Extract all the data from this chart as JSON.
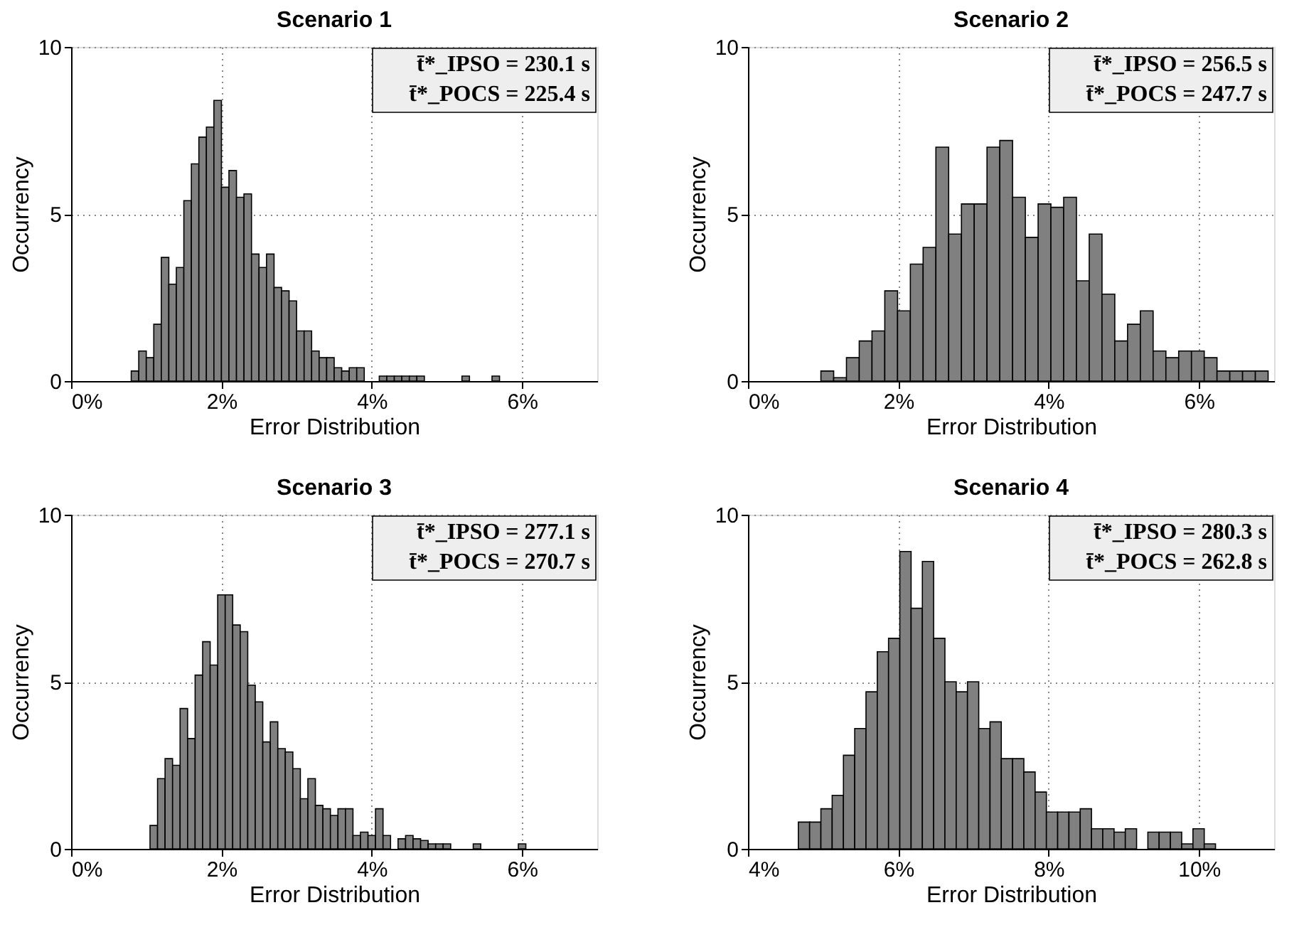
{
  "chart_data": [
    {
      "type": "histogram",
      "title": "Scenario 1",
      "xlabel": "Error Distribution",
      "ylabel": "Occurrency",
      "color": "#808080",
      "bins": [
        0.8,
        0.9,
        1.0,
        1.1,
        1.2,
        1.3,
        1.4,
        1.5,
        1.6,
        1.7,
        1.8,
        1.9,
        2.0,
        2.1,
        2.2,
        2.3,
        2.4,
        2.5,
        2.6,
        2.7,
        2.8,
        2.9,
        3.0,
        3.1,
        3.2,
        3.3,
        3.4,
        3.5,
        3.6,
        3.7,
        3.8,
        3.9,
        4.0,
        4.1,
        4.2,
        4.3,
        4.4,
        4.5,
        4.6,
        4.7,
        4.8,
        4.9,
        5.0,
        5.1,
        5.2,
        5.3,
        5.4,
        5.5,
        5.6,
        5.7
      ],
      "values": [
        0.3,
        0.9,
        0.7,
        1.7,
        3.7,
        2.9,
        3.4,
        5.4,
        6.5,
        7.3,
        7.6,
        8.4,
        5.8,
        6.3,
        5.5,
        5.6,
        3.8,
        3.4,
        3.8,
        2.8,
        2.7,
        2.4,
        1.5,
        1.5,
        0.9,
        0.7,
        0.7,
        0.4,
        0.3,
        0.4,
        0.4,
        0,
        0,
        0.15,
        0.15,
        0.15,
        0.15,
        0.15,
        0.15,
        0,
        0,
        0,
        0,
        0,
        0.15,
        0,
        0,
        0,
        0.15
      ],
      "xlim": [
        0,
        7
      ],
      "xticks": [
        {
          "value": 0,
          "label": "0%"
        },
        {
          "value": 2,
          "label": "2%"
        },
        {
          "value": 4,
          "label": "4%"
        },
        {
          "value": 6,
          "label": "6%"
        }
      ],
      "ylim": [
        0,
        10
      ],
      "yticks": [
        0,
        5,
        10
      ],
      "grid": true,
      "annotations": [
        "t̄*_IPSO = 230.1 s",
        "t̄*_POCS = 225.4 s"
      ]
    },
    {
      "type": "histogram",
      "title": "Scenario 2",
      "xlabel": "Error Distribution",
      "ylabel": "Occurrency",
      "color": "#808080",
      "bins": [
        0.97,
        1.14,
        1.31,
        1.48,
        1.65,
        1.82,
        1.99,
        2.16,
        2.33,
        2.5,
        2.67,
        2.84,
        3.01,
        3.18,
        3.35,
        3.52,
        3.69,
        3.86,
        4.03,
        4.2,
        4.37,
        4.54,
        4.71,
        4.88,
        5.05,
        5.22,
        5.39,
        5.56,
        5.73,
        5.9,
        6.07,
        6.24,
        6.41,
        6.58,
        6.75,
        6.92
      ],
      "values": [
        0.3,
        0.1,
        0.7,
        1.2,
        1.5,
        2.7,
        2.1,
        3.5,
        4.0,
        7.0,
        4.4,
        5.3,
        5.3,
        7.0,
        7.2,
        5.5,
        4.3,
        5.3,
        5.2,
        5.5,
        3.0,
        4.4,
        2.6,
        1.2,
        1.7,
        2.1,
        0.9,
        0.7,
        0.9,
        0.9,
        0.7,
        0.3,
        0.3,
        0.3,
        0.3
      ],
      "xlim": [
        0,
        7
      ],
      "xticks": [
        {
          "value": 0,
          "label": "0%"
        },
        {
          "value": 2,
          "label": "2%"
        },
        {
          "value": 4,
          "label": "4%"
        },
        {
          "value": 6,
          "label": "6%"
        }
      ],
      "ylim": [
        0,
        10
      ],
      "yticks": [
        0,
        5,
        10
      ],
      "grid": true,
      "annotations": [
        "t̄*_IPSO = 256.5 s",
        "t̄*_POCS = 247.7 s"
      ]
    },
    {
      "type": "histogram",
      "title": "Scenario 3",
      "xlabel": "Error Distribution",
      "ylabel": "Occurrency",
      "color": "#808080",
      "bins": [
        1.05,
        1.15,
        1.25,
        1.35,
        1.45,
        1.55,
        1.65,
        1.75,
        1.85,
        1.95,
        2.05,
        2.15,
        2.25,
        2.35,
        2.45,
        2.55,
        2.65,
        2.75,
        2.85,
        2.95,
        3.05,
        3.15,
        3.25,
        3.35,
        3.45,
        3.55,
        3.65,
        3.75,
        3.85,
        3.95,
        4.05,
        4.15,
        4.25,
        4.35,
        4.45,
        4.55,
        4.65,
        4.75,
        4.85,
        4.95,
        5.05,
        5.15,
        5.25,
        5.35,
        5.45,
        5.55,
        5.65,
        5.75,
        5.85,
        5.95,
        6.05
      ],
      "values": [
        0.7,
        2.1,
        2.7,
        2.5,
        4.2,
        3.3,
        5.2,
        6.2,
        5.5,
        7.6,
        7.6,
        6.7,
        6.5,
        4.9,
        4.4,
        3.2,
        3.8,
        3.0,
        2.9,
        2.4,
        1.5,
        2.1,
        1.3,
        1.2,
        1.0,
        1.2,
        1.2,
        0.4,
        0.5,
        0.4,
        1.2,
        0.4,
        0,
        0.3,
        0.4,
        0.3,
        0.25,
        0.15,
        0.15,
        0.15,
        0,
        0,
        0,
        0.15,
        0,
        0,
        0,
        0,
        0,
        0.15
      ],
      "xlim": [
        0,
        7
      ],
      "xticks": [
        {
          "value": 0,
          "label": "0%"
        },
        {
          "value": 2,
          "label": "2%"
        },
        {
          "value": 4,
          "label": "4%"
        },
        {
          "value": 6,
          "label": "6%"
        }
      ],
      "ylim": [
        0,
        10
      ],
      "yticks": [
        0,
        5,
        10
      ],
      "grid": true,
      "annotations": [
        "t̄*_IPSO = 277.1 s",
        "t̄*_POCS = 270.7 s"
      ]
    },
    {
      "type": "histogram",
      "title": "Scenario 4",
      "xlabel": "Error Distribution",
      "ylabel": "Occurrency",
      "color": "#808080",
      "bins": [
        4.67,
        4.82,
        4.97,
        5.12,
        5.27,
        5.42,
        5.57,
        5.72,
        5.87,
        6.02,
        6.17,
        6.32,
        6.47,
        6.62,
        6.77,
        6.92,
        7.07,
        7.22,
        7.37,
        7.52,
        7.67,
        7.82,
        7.97,
        8.12,
        8.27,
        8.42,
        8.57,
        8.72,
        8.87,
        9.02,
        9.17,
        9.32,
        9.47,
        9.62,
        9.77,
        9.92,
        10.07,
        10.22
      ],
      "values": [
        0.8,
        0.8,
        1.2,
        1.6,
        2.8,
        3.6,
        4.7,
        5.9,
        6.3,
        8.9,
        7.2,
        8.6,
        6.3,
        5.0,
        4.7,
        5.0,
        3.6,
        3.8,
        2.7,
        2.7,
        2.3,
        1.7,
        1.1,
        1.1,
        1.1,
        1.2,
        0.6,
        0.6,
        0.5,
        0.6,
        0,
        0.5,
        0.5,
        0.5,
        0.15,
        0.6,
        0.15
      ],
      "xlim": [
        4,
        11
      ],
      "xticks": [
        {
          "value": 4,
          "label": "4%"
        },
        {
          "value": 6,
          "label": "6%"
        },
        {
          "value": 8,
          "label": "8%"
        },
        {
          "value": 10,
          "label": "10%"
        }
      ],
      "ylim": [
        0,
        10
      ],
      "yticks": [
        0,
        5,
        10
      ],
      "grid": true,
      "annotations": [
        "t̄*_IPSO = 280.3 s",
        "t̄*_POCS = 262.8 s"
      ]
    }
  ]
}
